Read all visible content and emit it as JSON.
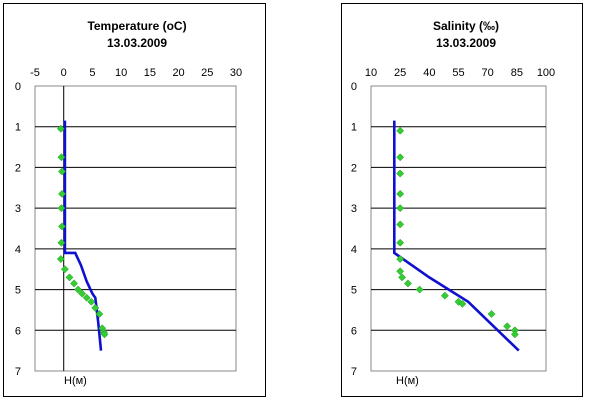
{
  "chart_data": [
    {
      "type": "scatter",
      "title": "Temperature  (oC)",
      "subtitle": "13.03.2009",
      "ylabel": "H(м)",
      "xlim": [
        -5,
        30
      ],
      "ylim": [
        0,
        7
      ],
      "y_inverted": true,
      "xticks": [
        "-5",
        "0",
        "5",
        "10",
        "15",
        "20",
        "25",
        "30"
      ],
      "yticks": [
        "0",
        "1",
        "2",
        "3",
        "4",
        "5",
        "6",
        "7"
      ],
      "grid": "horizontal",
      "series": [
        {
          "kind": "line",
          "color": "#1010d0",
          "points": [
            [
              0.2,
              0.85
            ],
            [
              0.2,
              4.1
            ],
            [
              2.0,
              4.1
            ],
            [
              3.0,
              4.4
            ],
            [
              4.0,
              4.8
            ],
            [
              5.0,
              5.1
            ],
            [
              5.5,
              5.2
            ],
            [
              6.0,
              5.8
            ],
            [
              6.5,
              6.5
            ]
          ]
        },
        {
          "kind": "scatter",
          "color": "#33cc33",
          "points": [
            [
              -0.5,
              1.05
            ],
            [
              -0.4,
              1.75
            ],
            [
              -0.3,
              2.1
            ],
            [
              -0.3,
              2.65
            ],
            [
              -0.4,
              3.0
            ],
            [
              -0.3,
              3.45
            ],
            [
              -0.4,
              3.85
            ],
            [
              -0.5,
              4.25
            ],
            [
              0.2,
              4.5
            ],
            [
              1.0,
              4.7
            ],
            [
              1.8,
              4.85
            ],
            [
              2.5,
              5.0
            ],
            [
              3.2,
              5.1
            ],
            [
              4.0,
              5.2
            ],
            [
              4.8,
              5.3
            ],
            [
              5.5,
              5.45
            ],
            [
              6.2,
              5.6
            ],
            [
              6.7,
              5.95
            ],
            [
              7.0,
              6.05
            ],
            [
              7.1,
              6.1
            ]
          ]
        }
      ]
    },
    {
      "type": "scatter",
      "title": "Salinity (‰)",
      "subtitle": "13.03.2009",
      "ylabel": "H(м)",
      "xlim": [
        10,
        100
      ],
      "ylim": [
        0,
        7
      ],
      "y_inverted": true,
      "xticks": [
        "10",
        "25",
        "40",
        "55",
        "70",
        "85",
        "100"
      ],
      "yticks": [
        "0",
        "1",
        "2",
        "3",
        "4",
        "5",
        "6",
        "7"
      ],
      "grid": "horizontal",
      "series": [
        {
          "kind": "line",
          "color": "#1010d0",
          "points": [
            [
              22,
              0.85
            ],
            [
              22,
              4.1
            ],
            [
              23.5,
              4.15
            ],
            [
              40,
              4.7
            ],
            [
              60,
              5.3
            ],
            [
              86,
              6.5
            ]
          ]
        },
        {
          "kind": "scatter",
          "color": "#33cc33",
          "points": [
            [
              25,
              1.1
            ],
            [
              25,
              1.75
            ],
            [
              25,
              2.15
            ],
            [
              25,
              2.65
            ],
            [
              25,
              3.0
            ],
            [
              25,
              3.4
            ],
            [
              25,
              3.85
            ],
            [
              25,
              4.25
            ],
            [
              25,
              4.55
            ],
            [
              26,
              4.7
            ],
            [
              29,
              4.85
            ],
            [
              35,
              5.0
            ],
            [
              48,
              5.15
            ],
            [
              55,
              5.3
            ],
            [
              57,
              5.35
            ],
            [
              72,
              5.6
            ],
            [
              80,
              5.9
            ],
            [
              84,
              6.0
            ],
            [
              84,
              6.1
            ]
          ]
        }
      ]
    }
  ]
}
